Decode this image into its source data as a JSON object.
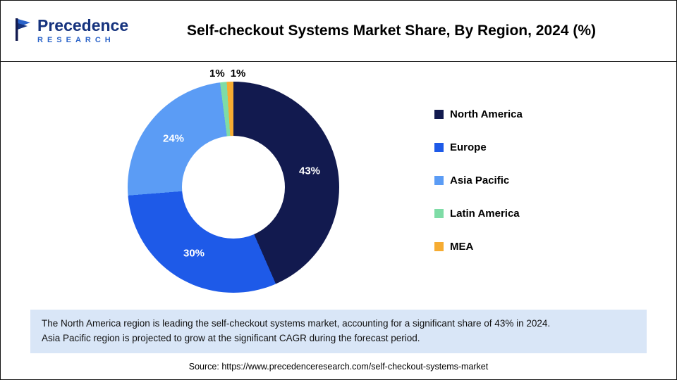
{
  "header": {
    "logo_name": "Precedence",
    "logo_sub": "RESEARCH",
    "title": "Self-checkout Systems Market Share, By Region, 2024 (%)"
  },
  "chart_data": {
    "type": "pie",
    "donut": true,
    "title": "Self-checkout Systems Market Share, By Region, 2024 (%)",
    "categories": [
      "North America",
      "Europe",
      "Asia Pacific",
      "Latin America",
      "MEA"
    ],
    "values": [
      43,
      30,
      24,
      1,
      1
    ],
    "labels": [
      "43%",
      "30%",
      "24%",
      "1%",
      "1%"
    ],
    "colors": [
      "#121A4F",
      "#1E5AE8",
      "#5B9CF5",
      "#7EDCA6",
      "#F6AC32"
    ],
    "legend_position": "right",
    "start_angle_deg": 0,
    "direction": "clockwise"
  },
  "note": {
    "line1": "The North America region is leading the self-checkout systems market, accounting for a significant share of 43% in 2024.",
    "line2": "Asia Pacific region is projected to grow at the significant CAGR during the forecast period."
  },
  "source": "Source: https://www.precedenceresearch.com/self-checkout-systems-market"
}
